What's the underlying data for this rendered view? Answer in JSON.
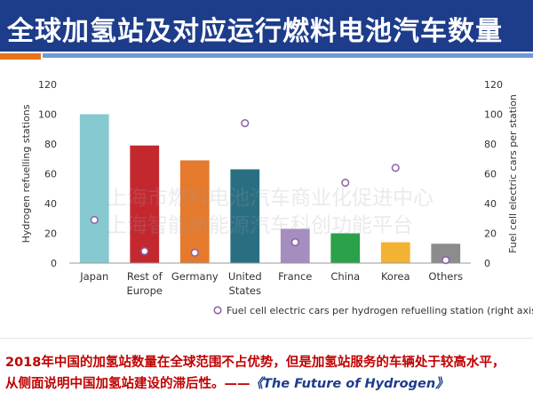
{
  "header": {
    "title": "全球加氢站及对应运行燃料电池汽车数量"
  },
  "watermark": {
    "line1": "上海市燃料电池汽车商业化促进中心",
    "line2": "上海智能新能源汽车科创功能平台"
  },
  "caption": {
    "line1": "2018年中国的加氢站数量在全球范围不占优势，但是加氢站服务的车辆处于较高水平，",
    "line2_text": "从侧面说明中国加氢站建设的滞后性。——",
    "line2_source": "《The Future of Hydrogen》"
  },
  "chart_data": {
    "type": "bar",
    "categories": [
      "Japan",
      "Rest of Europe",
      "Germany",
      "United States",
      "France",
      "China",
      "Korea",
      "Others"
    ],
    "category_lines": [
      [
        "Japan"
      ],
      [
        "Rest of",
        "Europe"
      ],
      [
        "Germany"
      ],
      [
        "United",
        "States"
      ],
      [
        "France"
      ],
      [
        "China"
      ],
      [
        "Korea"
      ],
      [
        "Others"
      ]
    ],
    "values": [
      100,
      79,
      69,
      63,
      23,
      20,
      14,
      13
    ],
    "bar_colors": [
      "#86c9d1",
      "#c4282f",
      "#e57a2c",
      "#2a6f81",
      "#a68dbf",
      "#2aa14a",
      "#f4b233",
      "#8c8c8c"
    ],
    "ylabel": "Hydrogen refuelling stations",
    "y2label": "Fuel cell electric cars per station",
    "ylim": [
      0,
      120
    ],
    "y2lim": [
      0,
      120
    ],
    "yticks": [
      0,
      20,
      40,
      60,
      80,
      100,
      120
    ],
    "y2ticks": [
      0,
      20,
      40,
      60,
      80,
      100,
      120
    ],
    "grid": false,
    "legend_position": "bottom",
    "series": [
      {
        "name": "Fuel cell electric cars per hydrogen refuelling station (right axis)",
        "type": "scatter",
        "axis": "right",
        "marker": "open-circle",
        "color": "#8a5fa8",
        "values": [
          29,
          8,
          7,
          94,
          14,
          54,
          64,
          2
        ]
      }
    ]
  }
}
